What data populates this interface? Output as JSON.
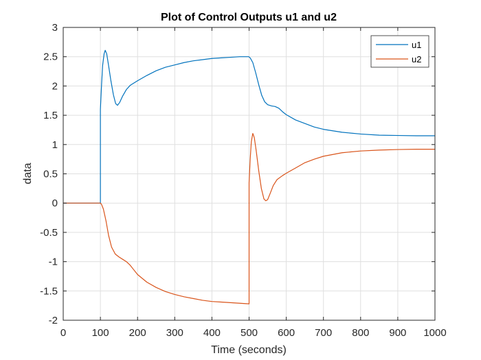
{
  "chart_data": {
    "type": "line",
    "title": "Plot of Control Outputs u1 and u2",
    "xlabel": "Time (seconds)",
    "ylabel": "data",
    "xlim": [
      0,
      1000
    ],
    "ylim": [
      -2,
      3
    ],
    "xticks": [
      0,
      100,
      200,
      300,
      400,
      500,
      600,
      700,
      800,
      900,
      1000
    ],
    "yticks": [
      -2,
      -1.5,
      -1,
      -0.5,
      0,
      0.5,
      1,
      1.5,
      2,
      2.5,
      3
    ],
    "xtick_labels": [
      "0",
      "100",
      "200",
      "300",
      "400",
      "500",
      "600",
      "700",
      "800",
      "900",
      "1000"
    ],
    "ytick_labels": [
      "-2",
      "-1.5",
      "-1",
      "-0.5",
      "0",
      "0.5",
      "1",
      "1.5",
      "2",
      "2.5",
      "3"
    ],
    "grid": true,
    "legend_position": "top-right",
    "series": [
      {
        "name": "u1",
        "color": "#0072BD",
        "points": [
          [
            0,
            0
          ],
          [
            100,
            0
          ],
          [
            100,
            1.6
          ],
          [
            103,
            2.0
          ],
          [
            106,
            2.35
          ],
          [
            110,
            2.55
          ],
          [
            113,
            2.61
          ],
          [
            117,
            2.55
          ],
          [
            122,
            2.35
          ],
          [
            128,
            2.1
          ],
          [
            135,
            1.85
          ],
          [
            141,
            1.7
          ],
          [
            146,
            1.67
          ],
          [
            152,
            1.72
          ],
          [
            160,
            1.83
          ],
          [
            170,
            1.94
          ],
          [
            180,
            2.01
          ],
          [
            190,
            2.05
          ],
          [
            200,
            2.09
          ],
          [
            225,
            2.18
          ],
          [
            250,
            2.26
          ],
          [
            275,
            2.32
          ],
          [
            300,
            2.36
          ],
          [
            325,
            2.4
          ],
          [
            350,
            2.43
          ],
          [
            375,
            2.45
          ],
          [
            400,
            2.47
          ],
          [
            425,
            2.48
          ],
          [
            450,
            2.49
          ],
          [
            475,
            2.5
          ],
          [
            499,
            2.5
          ],
          [
            503,
            2.48
          ],
          [
            510,
            2.4
          ],
          [
            518,
            2.22
          ],
          [
            526,
            2.02
          ],
          [
            534,
            1.84
          ],
          [
            542,
            1.73
          ],
          [
            550,
            1.68
          ],
          [
            560,
            1.66
          ],
          [
            570,
            1.65
          ],
          [
            580,
            1.62
          ],
          [
            590,
            1.56
          ],
          [
            600,
            1.51
          ],
          [
            625,
            1.42
          ],
          [
            650,
            1.36
          ],
          [
            675,
            1.3
          ],
          [
            700,
            1.26
          ],
          [
            750,
            1.21
          ],
          [
            800,
            1.18
          ],
          [
            850,
            1.16
          ],
          [
            900,
            1.155
          ],
          [
            950,
            1.15
          ],
          [
            1000,
            1.15
          ]
        ]
      },
      {
        "name": "u2",
        "color": "#D95319",
        "points": [
          [
            0,
            0
          ],
          [
            100,
            0
          ],
          [
            103,
            -0.02
          ],
          [
            108,
            -0.1
          ],
          [
            115,
            -0.3
          ],
          [
            122,
            -0.55
          ],
          [
            130,
            -0.75
          ],
          [
            140,
            -0.87
          ],
          [
            150,
            -0.92
          ],
          [
            160,
            -0.96
          ],
          [
            170,
            -1.0
          ],
          [
            180,
            -1.06
          ],
          [
            190,
            -1.14
          ],
          [
            200,
            -1.22
          ],
          [
            225,
            -1.35
          ],
          [
            250,
            -1.44
          ],
          [
            275,
            -1.51
          ],
          [
            300,
            -1.56
          ],
          [
            325,
            -1.6
          ],
          [
            350,
            -1.63
          ],
          [
            375,
            -1.66
          ],
          [
            400,
            -1.68
          ],
          [
            425,
            -1.69
          ],
          [
            450,
            -1.7
          ],
          [
            475,
            -1.71
          ],
          [
            500,
            -1.72
          ],
          [
            500,
            0.35
          ],
          [
            503,
            0.75
          ],
          [
            506,
            1.05
          ],
          [
            510,
            1.19
          ],
          [
            514,
            1.12
          ],
          [
            519,
            0.9
          ],
          [
            526,
            0.55
          ],
          [
            533,
            0.25
          ],
          [
            540,
            0.07
          ],
          [
            545,
            0.04
          ],
          [
            550,
            0.06
          ],
          [
            557,
            0.17
          ],
          [
            565,
            0.3
          ],
          [
            575,
            0.4
          ],
          [
            590,
            0.47
          ],
          [
            600,
            0.51
          ],
          [
            625,
            0.6
          ],
          [
            650,
            0.69
          ],
          [
            675,
            0.75
          ],
          [
            700,
            0.8
          ],
          [
            750,
            0.86
          ],
          [
            800,
            0.89
          ],
          [
            850,
            0.905
          ],
          [
            900,
            0.915
          ],
          [
            950,
            0.92
          ],
          [
            1000,
            0.92
          ]
        ]
      }
    ]
  }
}
